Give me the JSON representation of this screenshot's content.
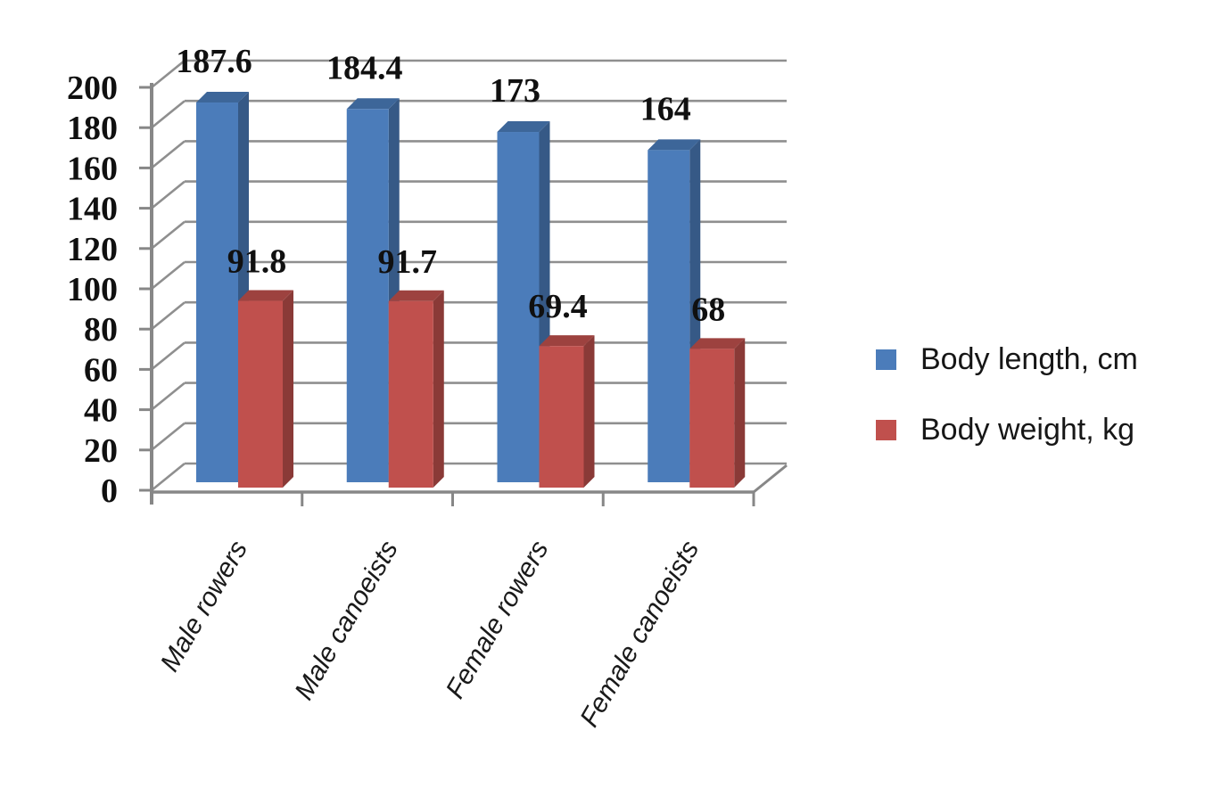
{
  "chart_data": {
    "type": "bar",
    "style": "3d-clustered-column",
    "title": "",
    "xlabel": "",
    "ylabel": "",
    "categories": [
      "Male rowers",
      "Male canoeists",
      "Female rowers",
      "Female canoeists"
    ],
    "series": [
      {
        "name": "Body length, cm",
        "color": "#4B7CBA",
        "values": [
          187.6,
          184.4,
          173,
          164
        ]
      },
      {
        "name": "Body weight, kg",
        "color": "#C0504D",
        "values": [
          91.8,
          91.7,
          69.4,
          68
        ]
      }
    ],
    "data_labels": [
      [
        "187.6",
        "184.4",
        "173",
        "164"
      ],
      [
        "91.8",
        "91.7",
        "69.4",
        "68"
      ]
    ],
    "ylim": [
      0,
      200
    ],
    "ytick_step": 20,
    "ytick_labels": [
      "0",
      "20",
      "40",
      "60",
      "80",
      "100",
      "120",
      "140",
      "160",
      "180",
      "200"
    ],
    "grid": true,
    "grid_color": "#8F8F8F",
    "axis_color": "#878787",
    "text_color": "#101010",
    "legend_position": "right"
  }
}
